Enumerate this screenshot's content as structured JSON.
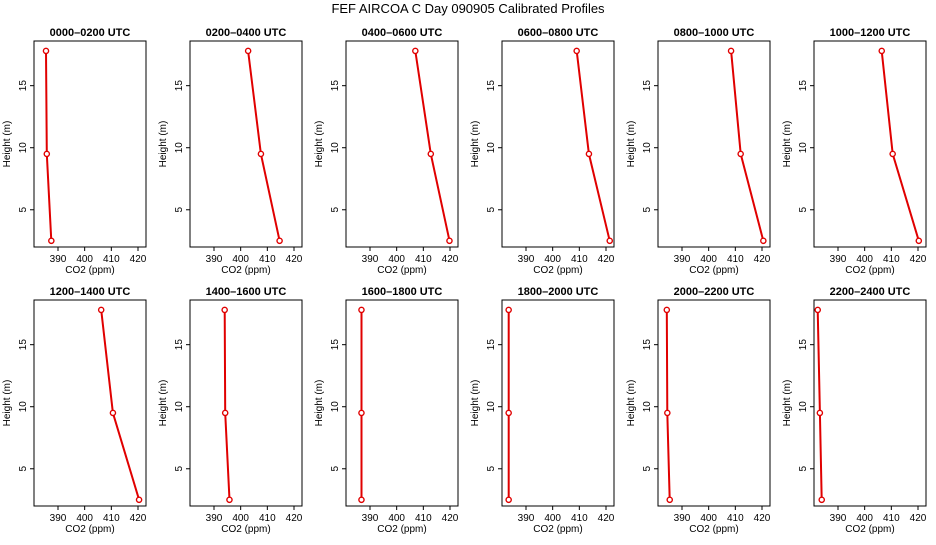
{
  "figure": {
    "title": "FEF AIRCOA C  Day 090905  Calibrated Profiles"
  },
  "chart_data": [
    {
      "type": "line",
      "title": "0000–0200 UTC",
      "xlabel": "CO2 (ppm)",
      "ylabel": "Height (m)",
      "x": [
        387.5,
        385.8,
        385.5
      ],
      "y": [
        2.5,
        9.5,
        17.8
      ],
      "xlim": [
        381,
        423
      ],
      "ylim": [
        2,
        18.6
      ],
      "xticks": [
        "390",
        "400",
        "410",
        "420"
      ],
      "yticks": [
        "5",
        "10",
        "15"
      ],
      "series_color": "#e00000",
      "grid": false
    },
    {
      "type": "line",
      "title": "0200–0400 UTC",
      "xlabel": "CO2 (ppm)",
      "ylabel": "Height (m)",
      "x": [
        414.6,
        407.6,
        402.8
      ],
      "y": [
        2.5,
        9.5,
        17.8
      ],
      "xlim": [
        381,
        423
      ],
      "ylim": [
        2,
        18.6
      ],
      "xticks": [
        "390",
        "400",
        "410",
        "420"
      ],
      "yticks": [
        "5",
        "10",
        "15"
      ],
      "series_color": "#e00000",
      "grid": false
    },
    {
      "type": "line",
      "title": "0400–0600 UTC",
      "xlabel": "CO2 (ppm)",
      "ylabel": "Height (m)",
      "x": [
        419.8,
        412.8,
        407.0
      ],
      "y": [
        2.5,
        9.5,
        17.8
      ],
      "xlim": [
        381,
        423
      ],
      "ylim": [
        2,
        18.6
      ],
      "xticks": [
        "390",
        "400",
        "410",
        "420"
      ],
      "yticks": [
        "5",
        "10",
        "15"
      ],
      "series_color": "#e00000",
      "grid": false
    },
    {
      "type": "line",
      "title": "0600–0800 UTC",
      "xlabel": "CO2 (ppm)",
      "ylabel": "Height (m)",
      "x": [
        421.4,
        413.6,
        409.0
      ],
      "y": [
        2.5,
        9.5,
        17.8
      ],
      "xlim": [
        381,
        423
      ],
      "ylim": [
        2,
        18.6
      ],
      "xticks": [
        "390",
        "400",
        "410",
        "420"
      ],
      "yticks": [
        "5",
        "10",
        "15"
      ],
      "series_color": "#e00000",
      "grid": false
    },
    {
      "type": "line",
      "title": "0800–1000 UTC",
      "xlabel": "CO2 (ppm)",
      "ylabel": "Height (m)",
      "x": [
        420.5,
        412.0,
        408.4
      ],
      "y": [
        2.5,
        9.5,
        17.8
      ],
      "xlim": [
        381,
        423
      ],
      "ylim": [
        2,
        18.6
      ],
      "xticks": [
        "390",
        "400",
        "410",
        "420"
      ],
      "yticks": [
        "5",
        "10",
        "15"
      ],
      "series_color": "#e00000",
      "grid": false
    },
    {
      "type": "line",
      "title": "1000–1200 UTC",
      "xlabel": "CO2 (ppm)",
      "ylabel": "Height (m)",
      "x": [
        420.3,
        410.5,
        406.4
      ],
      "y": [
        2.5,
        9.5,
        17.8
      ],
      "xlim": [
        381,
        423
      ],
      "ylim": [
        2,
        18.6
      ],
      "xticks": [
        "390",
        "400",
        "410",
        "420"
      ],
      "yticks": [
        "5",
        "10",
        "15"
      ],
      "series_color": "#e00000",
      "grid": false
    },
    {
      "type": "line",
      "title": "1200–1400 UTC",
      "xlabel": "CO2 (ppm)",
      "ylabel": "Height (m)",
      "x": [
        420.4,
        410.6,
        406.2
      ],
      "y": [
        2.5,
        9.5,
        17.8
      ],
      "xlim": [
        381,
        423
      ],
      "ylim": [
        2,
        18.6
      ],
      "xticks": [
        "390",
        "400",
        "410",
        "420"
      ],
      "yticks": [
        "5",
        "10",
        "15"
      ],
      "series_color": "#e00000",
      "grid": false
    },
    {
      "type": "line",
      "title": "1400–1600 UTC",
      "xlabel": "CO2 (ppm)",
      "ylabel": "Height (m)",
      "x": [
        395.8,
        394.2,
        394.0
      ],
      "y": [
        2.5,
        9.5,
        17.8
      ],
      "xlim": [
        381,
        423
      ],
      "ylim": [
        2,
        18.6
      ],
      "xticks": [
        "390",
        "400",
        "410",
        "420"
      ],
      "yticks": [
        "5",
        "10",
        "15"
      ],
      "series_color": "#e00000",
      "grid": false
    },
    {
      "type": "line",
      "title": "1600–1800 UTC",
      "xlabel": "CO2 (ppm)",
      "ylabel": "Height (m)",
      "x": [
        386.8,
        386.8,
        386.8
      ],
      "y": [
        2.5,
        9.5,
        17.8
      ],
      "xlim": [
        381,
        423
      ],
      "ylim": [
        2,
        18.6
      ],
      "xticks": [
        "390",
        "400",
        "410",
        "420"
      ],
      "yticks": [
        "5",
        "10",
        "15"
      ],
      "series_color": "#e00000",
      "grid": false
    },
    {
      "type": "line",
      "title": "1800–2000 UTC",
      "xlabel": "CO2 (ppm)",
      "ylabel": "Height (m)",
      "x": [
        383.5,
        383.5,
        383.5
      ],
      "y": [
        2.5,
        9.5,
        17.8
      ],
      "xlim": [
        381,
        423
      ],
      "ylim": [
        2,
        18.6
      ],
      "xticks": [
        "390",
        "400",
        "410",
        "420"
      ],
      "yticks": [
        "5",
        "10",
        "15"
      ],
      "series_color": "#e00000",
      "grid": false
    },
    {
      "type": "line",
      "title": "2000–2200 UTC",
      "xlabel": "CO2 (ppm)",
      "ylabel": "Height (m)",
      "x": [
        385.4,
        384.5,
        384.3
      ],
      "y": [
        2.5,
        9.5,
        17.8
      ],
      "xlim": [
        381,
        423
      ],
      "ylim": [
        2,
        18.6
      ],
      "xticks": [
        "390",
        "400",
        "410",
        "420"
      ],
      "yticks": [
        "5",
        "10",
        "15"
      ],
      "series_color": "#e00000",
      "grid": false
    },
    {
      "type": "line",
      "title": "2200–2400 UTC",
      "xlabel": "CO2 (ppm)",
      "ylabel": "Height (m)",
      "x": [
        383.9,
        383.2,
        382.4
      ],
      "y": [
        2.5,
        9.5,
        17.8
      ],
      "xlim": [
        381,
        423
      ],
      "ylim": [
        2,
        18.6
      ],
      "xticks": [
        "390",
        "400",
        "410",
        "420"
      ],
      "yticks": [
        "5",
        "10",
        "15"
      ],
      "series_color": "#e00000",
      "grid": false
    }
  ]
}
